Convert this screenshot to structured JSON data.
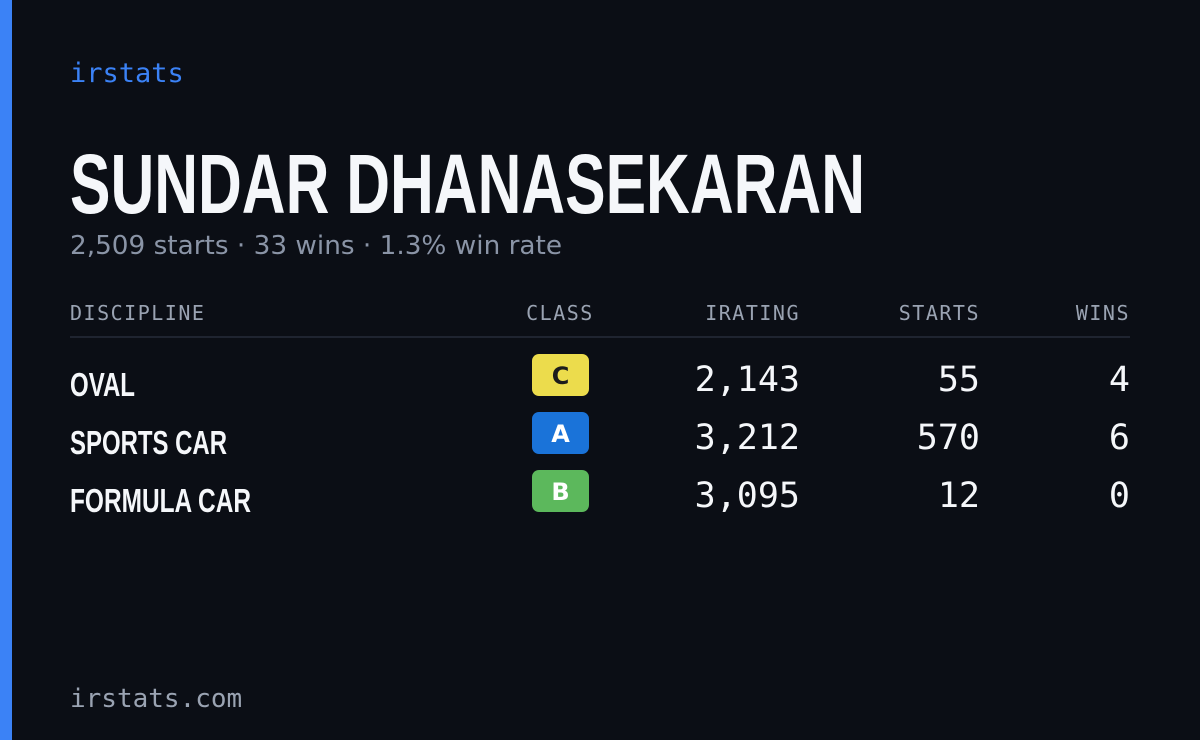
{
  "brand": "irstats",
  "profile": {
    "name": "SUNDAR DHANASEKARAN",
    "summary": "2,509 starts · 33 wins · 1.3% win rate"
  },
  "table": {
    "headers": [
      "DISCIPLINE",
      "CLASS",
      "IRATING",
      "STARTS",
      "WINS"
    ],
    "rows": [
      [
        "OVAL",
        "C",
        "2,143",
        "55",
        "4"
      ],
      [
        "SPORTS CAR",
        "A",
        "3,212",
        "570",
        "6"
      ],
      [
        "FORMULA CAR",
        "B",
        "3,095",
        "12",
        "0"
      ]
    ]
  },
  "footer": "irstats.com"
}
